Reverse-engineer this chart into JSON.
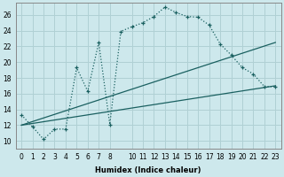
{
  "xlabel": "Humidex (Indice chaleur)",
  "background_color": "#cde8ec",
  "grid_color": "#b0d0d4",
  "line_color": "#1a6060",
  "xlim": [
    -0.5,
    23.5
  ],
  "ylim": [
    9,
    27.5
  ],
  "x_ticks": [
    0,
    1,
    2,
    3,
    4,
    5,
    6,
    7,
    8,
    10,
    11,
    12,
    13,
    14,
    15,
    16,
    17,
    18,
    19,
    20,
    21,
    22,
    23
  ],
  "y_ticks": [
    10,
    12,
    14,
    16,
    18,
    20,
    22,
    24,
    26
  ],
  "series1_x": [
    0,
    1,
    2,
    3,
    4,
    5,
    6,
    7,
    8,
    9,
    10,
    11,
    12,
    13,
    14,
    15,
    16,
    17,
    18,
    19,
    20,
    21,
    22,
    23
  ],
  "series1_y": [
    13.3,
    11.8,
    10.2,
    11.5,
    11.5,
    19.3,
    16.3,
    22.5,
    12.1,
    23.9,
    24.5,
    25.0,
    25.8,
    27.0,
    26.3,
    25.8,
    25.7,
    24.7,
    22.3,
    20.9,
    19.3,
    18.5,
    16.9,
    16.9
  ],
  "series2_x": [
    0,
    23
  ],
  "series2_y": [
    12.0,
    17.0
  ],
  "series3_x": [
    0,
    23
  ],
  "series3_y": [
    12.0,
    22.5
  ]
}
